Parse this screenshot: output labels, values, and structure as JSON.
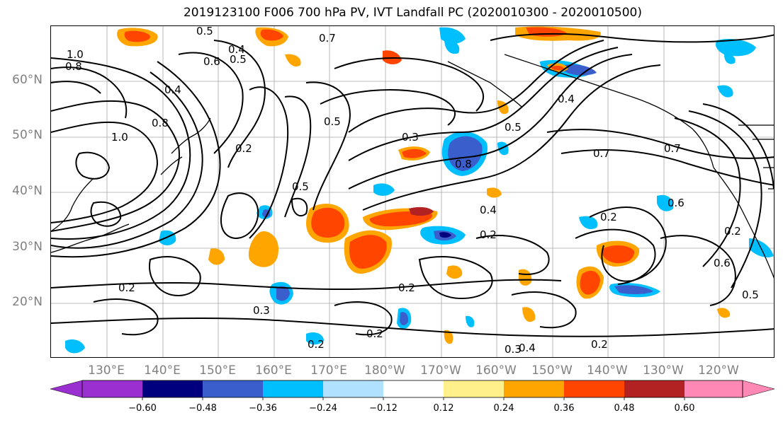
{
  "title": "2019123100 F006 700 hPa PV, IVT Landfall PC (2020010300 - 2020010500)",
  "map": {
    "lat_ticks": [
      "60°N",
      "50°N",
      "40°N",
      "30°N",
      "20°N"
    ],
    "lon_ticks": [
      "130°E",
      "140°E",
      "150°E",
      "160°E",
      "170°E",
      "180°W",
      "170°W",
      "160°W",
      "150°W",
      "140°W",
      "130°W",
      "120°W"
    ],
    "contour_labels": [
      "0.5",
      "0.7",
      "0.4",
      "0.5",
      "1.0",
      "0.8",
      "0.6",
      "0.4",
      "0.8",
      "1.0",
      "0.2",
      "0.5",
      "0.3",
      "0.8",
      "0.5",
      "0.4",
      "0.5",
      "0.4",
      "0.7",
      "0.2",
      "0.7",
      "0.6",
      "0.2",
      "0.6",
      "0.5",
      "0.2",
      "0.3",
      "0.2",
      "0.3",
      "0.2",
      "0.2",
      "0.4",
      "0.2",
      "0.2"
    ],
    "colors": {
      "land_outline": "#000000",
      "grid": "#a0a0a0"
    }
  },
  "colorbar": {
    "ticks": [
      "−0.60",
      "−0.48",
      "−0.36",
      "−0.24",
      "−0.12",
      "0.12",
      "0.24",
      "0.36",
      "0.48",
      "0.60"
    ],
    "colors": [
      "#9b30d0",
      "#00007f",
      "#3a5fcd",
      "#00bfff",
      "#b0e2ff",
      "#ffffff",
      "#fff08c",
      "#ffa500",
      "#ff4500",
      "#b22222",
      "#ff88b4"
    ]
  }
}
